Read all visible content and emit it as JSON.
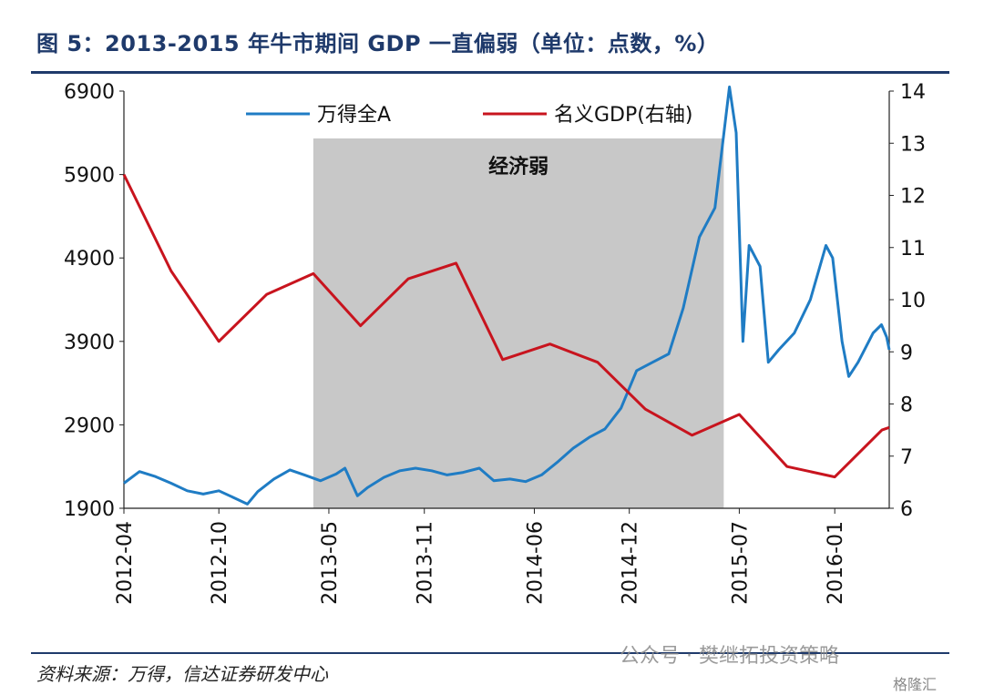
{
  "header": {
    "title": "图 5：2013-2015 年牛市期间 GDP 一直偏弱（单位：点数，%）"
  },
  "footer": {
    "source": "资料来源：万得，信达证券研发中心",
    "watermark": "公众号 · 樊继拓投资策略",
    "watermark_logo": "格隆汇"
  },
  "chart_data": {
    "type": "line",
    "x_ticks": [
      "2012-04",
      "2012-10",
      "2013-05",
      "2013-11",
      "2014-06",
      "2014-12",
      "2015-07",
      "2016-01"
    ],
    "x_range": [
      "2012-04-01",
      "2016-04-15"
    ],
    "y_left": {
      "ticks": [
        "1900",
        "2900",
        "3900",
        "4900",
        "5900",
        "6900"
      ],
      "range": [
        1900,
        6900
      ]
    },
    "y_right": {
      "ticks": [
        "6",
        "7",
        "8",
        "9",
        "10",
        "11",
        "12",
        "13",
        "14"
      ],
      "range": [
        6,
        14
      ]
    },
    "shaded_region": {
      "label": "经济弱",
      "start": "2013-04-01",
      "end": "2015-06-01",
      "color": "#c8c8c8"
    },
    "legend": {
      "placement": "top",
      "entries": [
        "万得全A",
        "名义GDP(右轴)"
      ]
    },
    "series": [
      {
        "name": "万得全A",
        "axis": "left",
        "color": "#1f7cc4",
        "points": [
          [
            "2012-04-01",
            2200
          ],
          [
            "2012-05-01",
            2340
          ],
          [
            "2012-06-01",
            2280
          ],
          [
            "2012-07-01",
            2200
          ],
          [
            "2012-08-01",
            2110
          ],
          [
            "2012-09-01",
            2070
          ],
          [
            "2012-10-01",
            2110
          ],
          [
            "2012-11-01",
            2020
          ],
          [
            "2012-11-25",
            1950
          ],
          [
            "2012-12-15",
            2100
          ],
          [
            "2013-01-15",
            2250
          ],
          [
            "2013-02-15",
            2360
          ],
          [
            "2013-03-15",
            2300
          ],
          [
            "2013-04-15",
            2230
          ],
          [
            "2013-05-15",
            2310
          ],
          [
            "2013-06-01",
            2380
          ],
          [
            "2013-06-25",
            2050
          ],
          [
            "2013-07-15",
            2150
          ],
          [
            "2013-08-15",
            2270
          ],
          [
            "2013-09-15",
            2350
          ],
          [
            "2013-10-15",
            2380
          ],
          [
            "2013-11-15",
            2350
          ],
          [
            "2013-12-15",
            2300
          ],
          [
            "2014-01-15",
            2330
          ],
          [
            "2014-02-15",
            2380
          ],
          [
            "2014-03-15",
            2230
          ],
          [
            "2014-04-15",
            2250
          ],
          [
            "2014-05-15",
            2220
          ],
          [
            "2014-06-15",
            2300
          ],
          [
            "2014-07-15",
            2450
          ],
          [
            "2014-08-15",
            2620
          ],
          [
            "2014-09-15",
            2750
          ],
          [
            "2014-10-15",
            2850
          ],
          [
            "2014-11-15",
            3100
          ],
          [
            "2014-12-15",
            3550
          ],
          [
            "2015-01-15",
            3650
          ],
          [
            "2015-02-15",
            3750
          ],
          [
            "2015-03-15",
            4300
          ],
          [
            "2015-04-15",
            5150
          ],
          [
            "2015-05-15",
            5500
          ],
          [
            "2015-06-12",
            6950
          ],
          [
            "2015-06-25",
            6400
          ],
          [
            "2015-07-08",
            3900
          ],
          [
            "2015-07-20",
            5050
          ],
          [
            "2015-08-10",
            4800
          ],
          [
            "2015-08-26",
            3650
          ],
          [
            "2015-09-15",
            3800
          ],
          [
            "2015-10-15",
            4000
          ],
          [
            "2015-11-15",
            4400
          ],
          [
            "2015-12-15",
            5050
          ],
          [
            "2015-12-28",
            4900
          ],
          [
            "2016-01-15",
            3900
          ],
          [
            "2016-01-28",
            3480
          ],
          [
            "2016-02-15",
            3650
          ],
          [
            "2016-03-15",
            4000
          ],
          [
            "2016-03-31",
            4100
          ],
          [
            "2016-04-10",
            3950
          ],
          [
            "2016-04-15",
            3800
          ]
        ]
      },
      {
        "name": "名义GDP(右轴)",
        "axis": "right",
        "color": "#c8141e",
        "points": [
          [
            "2012-04-01",
            12.4
          ],
          [
            "2012-07-01",
            10.55
          ],
          [
            "2012-10-01",
            9.2
          ],
          [
            "2013-01-01",
            10.1
          ],
          [
            "2013-04-01",
            10.5
          ],
          [
            "2013-07-01",
            9.5
          ],
          [
            "2013-10-01",
            10.4
          ],
          [
            "2014-01-01",
            10.7
          ],
          [
            "2014-04-01",
            8.85
          ],
          [
            "2014-07-01",
            9.15
          ],
          [
            "2014-10-01",
            8.8
          ],
          [
            "2015-01-01",
            7.9
          ],
          [
            "2015-04-01",
            7.4
          ],
          [
            "2015-07-01",
            7.8
          ],
          [
            "2015-10-01",
            6.8
          ],
          [
            "2016-01-01",
            6.6
          ],
          [
            "2016-04-01",
            7.5
          ],
          [
            "2016-04-15",
            7.55
          ]
        ]
      }
    ]
  }
}
